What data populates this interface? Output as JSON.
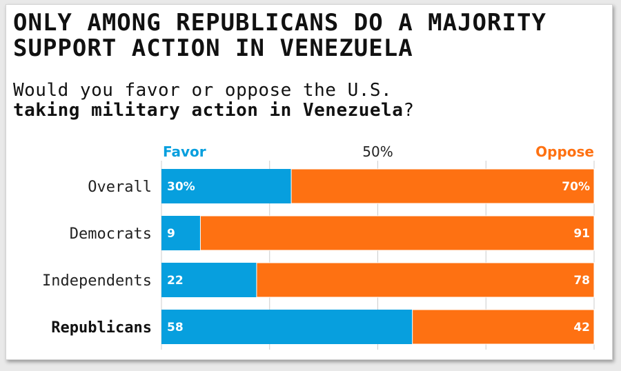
{
  "title": "ONLY AMONG REPUBLICANS DO A MAJORITY SUPPORT ACTION IN VENEZUELA",
  "subtitle": {
    "line1": "Would you favor or oppose the U.S.",
    "line2_bold": "taking military action in Venezuela",
    "line2_end": "?"
  },
  "colors": {
    "favor": "#079fde",
    "oppose": "#fe7112",
    "grid": "#cccccc"
  },
  "chart_data": {
    "type": "bar",
    "orientation": "horizontal",
    "stacked": true,
    "categories": [
      "Overall",
      "Democrats",
      "Independents",
      "Republicans"
    ],
    "category_bold": [
      false,
      false,
      false,
      true
    ],
    "series": [
      {
        "name": "Favor",
        "values": [
          30,
          9,
          22,
          58
        ],
        "labels": [
          "30%",
          "9",
          "22",
          "58"
        ]
      },
      {
        "name": "Oppose",
        "values": [
          70,
          91,
          78,
          42
        ],
        "labels": [
          "70%",
          "91",
          "78",
          "42"
        ]
      }
    ],
    "midline_label": "50%",
    "xlim": [
      0,
      100
    ],
    "grid": true
  }
}
